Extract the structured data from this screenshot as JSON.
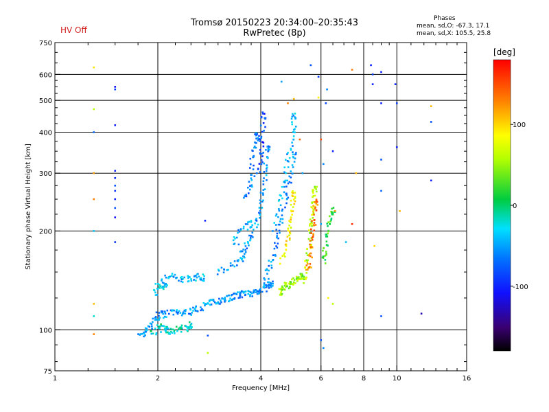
{
  "header": {
    "hv_status": "HV Off",
    "title": "Tromsø 20150223 20:34:00–20:35:43",
    "subtitle": "RwPretec (8p)",
    "stats_title": "Phases",
    "stats_o": "mean, sd,O: -67.3, 17.1",
    "stats_x": "mean, sd,X: 105.5, 25.8"
  },
  "colors": {
    "hv_status": "#d22020",
    "colorbar_top": "#ff0000",
    "colorbar_bottom": "#000000"
  },
  "chart_data": {
    "type": "scatter",
    "xlabel": "Frequency [MHz]",
    "ylabel": "Stationary phase Virtual Height [km]",
    "x_scale": "log",
    "y_scale": "log",
    "xlim": [
      1,
      16
    ],
    "ylim": [
      75,
      750
    ],
    "x_ticks": [
      1,
      2,
      4,
      6,
      8,
      10,
      16
    ],
    "y_ticks": [
      75,
      100,
      200,
      300,
      400,
      500,
      600,
      750
    ],
    "x_grid": [
      2,
      4,
      6,
      8,
      10
    ],
    "y_grid": [
      100,
      200,
      300,
      400,
      500,
      600
    ],
    "colorbar": {
      "label": "[deg]",
      "range": [
        -180,
        180
      ],
      "ticks": [
        100,
        0,
        -100
      ]
    },
    "traces": [
      {
        "phase": -55,
        "points": [
          [
            1.78,
            95
          ],
          [
            1.82,
            98
          ],
          [
            1.88,
            102
          ],
          [
            1.95,
            106
          ],
          [
            2.0,
            110
          ],
          [
            2.05,
            112
          ],
          [
            2.1,
            111
          ],
          [
            2.2,
            113
          ],
          [
            2.3,
            112
          ],
          [
            2.4,
            113
          ],
          [
            2.5,
            114
          ],
          [
            2.6,
            115
          ],
          [
            2.7,
            118
          ],
          [
            2.8,
            120
          ],
          [
            2.9,
            121
          ],
          [
            3.0,
            123
          ],
          [
            3.1,
            124
          ],
          [
            3.2,
            125
          ],
          [
            3.3,
            126
          ],
          [
            3.4,
            127
          ],
          [
            3.5,
            128
          ],
          [
            3.6,
            128
          ],
          [
            3.7,
            129
          ],
          [
            3.8,
            130
          ],
          [
            3.9,
            131
          ],
          [
            4.0,
            132
          ],
          [
            4.1,
            134
          ],
          [
            4.2,
            136
          ],
          [
            4.3,
            138
          ]
        ]
      },
      {
        "phase": -20,
        "points": [
          [
            1.9,
            97
          ],
          [
            2.0,
            100
          ],
          [
            2.05,
            102
          ],
          [
            2.1,
            101
          ],
          [
            2.15,
            100
          ],
          [
            2.2,
            99
          ],
          [
            2.3,
            100
          ],
          [
            2.4,
            101
          ],
          [
            2.5,
            103
          ]
        ]
      },
      {
        "phase": -40,
        "points": [
          [
            2.0,
            140
          ],
          [
            2.1,
            143
          ],
          [
            2.2,
            145
          ],
          [
            2.3,
            144
          ],
          [
            2.4,
            143
          ],
          [
            2.5,
            144
          ],
          [
            2.6,
            145
          ],
          [
            2.7,
            144
          ]
        ]
      },
      {
        "phase": -30,
        "points": [
          [
            1.95,
            130
          ],
          [
            2.0,
            133
          ],
          [
            2.1,
            136
          ]
        ]
      },
      {
        "phase": -55,
        "points": [
          [
            3.5,
            165
          ],
          [
            3.6,
            175
          ],
          [
            3.7,
            185
          ],
          [
            3.8,
            200
          ],
          [
            3.9,
            215
          ],
          [
            4.0,
            235
          ],
          [
            4.05,
            260
          ],
          [
            4.1,
            290
          ],
          [
            4.15,
            320
          ],
          [
            4.2,
            360
          ]
        ]
      },
      {
        "phase": -85,
        "points": [
          [
            3.9,
            300
          ],
          [
            4.0,
            330
          ],
          [
            4.02,
            360
          ],
          [
            4.05,
            400
          ],
          [
            4.08,
            450
          ]
        ]
      },
      {
        "phase": -60,
        "points": [
          [
            4.1,
            140
          ],
          [
            4.2,
            150
          ],
          [
            4.3,
            160
          ],
          [
            4.4,
            175
          ],
          [
            4.5,
            195
          ],
          [
            4.6,
            215
          ],
          [
            4.7,
            240
          ],
          [
            4.8,
            270
          ],
          [
            4.9,
            300
          ],
          [
            5.0,
            340
          ]
        ]
      },
      {
        "phase": -45,
        "points": [
          [
            4.4,
            200
          ],
          [
            4.5,
            230
          ],
          [
            4.6,
            260
          ],
          [
            4.7,
            290
          ],
          [
            4.8,
            330
          ],
          [
            4.9,
            370
          ],
          [
            5.0,
            410
          ],
          [
            5.0,
            450
          ]
        ]
      },
      {
        "phase": 50,
        "points": [
          [
            4.5,
            130
          ],
          [
            4.6,
            132
          ],
          [
            4.7,
            135
          ],
          [
            4.8,
            137
          ],
          [
            4.9,
            138
          ],
          [
            5.0,
            140
          ],
          [
            5.1,
            142
          ],
          [
            5.2,
            144
          ],
          [
            5.3,
            145
          ]
        ]
      },
      {
        "phase": 90,
        "points": [
          [
            4.6,
            160
          ],
          [
            4.7,
            175
          ],
          [
            4.8,
            190
          ],
          [
            4.85,
            205
          ],
          [
            4.9,
            220
          ],
          [
            4.95,
            240
          ],
          [
            5.0,
            260
          ]
        ]
      },
      {
        "phase": 60,
        "points": [
          [
            5.4,
            140
          ],
          [
            5.45,
            155
          ],
          [
            5.5,
            170
          ],
          [
            5.55,
            185
          ],
          [
            5.6,
            200
          ],
          [
            5.65,
            215
          ],
          [
            5.7,
            230
          ],
          [
            5.72,
            250
          ],
          [
            5.75,
            270
          ]
        ]
      },
      {
        "phase": 130,
        "points": [
          [
            5.5,
            150
          ],
          [
            5.55,
            160
          ],
          [
            5.6,
            175
          ],
          [
            5.65,
            190
          ],
          [
            5.7,
            205
          ],
          [
            5.75,
            225
          ],
          [
            5.78,
            245
          ]
        ]
      },
      {
        "phase": 20,
        "points": [
          [
            6.1,
            160
          ],
          [
            6.15,
            170
          ],
          [
            6.2,
            185
          ],
          [
            6.3,
            200
          ],
          [
            6.4,
            215
          ],
          [
            6.5,
            230
          ]
        ]
      },
      {
        "phase": -50,
        "points": [
          [
            3.0,
            150
          ],
          [
            3.2,
            155
          ],
          [
            3.4,
            160
          ],
          [
            3.6,
            165
          ],
          [
            3.3,
            190
          ],
          [
            3.5,
            200
          ],
          [
            3.7,
            210
          ]
        ]
      },
      {
        "phase": -65,
        "points": [
          [
            3.6,
            250
          ],
          [
            3.7,
            270
          ],
          [
            3.8,
            290
          ],
          [
            3.75,
            330
          ],
          [
            3.85,
            360
          ],
          [
            3.9,
            390
          ]
        ]
      }
    ],
    "isolated_points": [
      [
        1.3,
        630,
        95
      ],
      [
        1.3,
        470,
        60
      ],
      [
        1.3,
        400,
        -70
      ],
      [
        1.3,
        300,
        120
      ],
      [
        1.3,
        250,
        130
      ],
      [
        1.3,
        200,
        -40
      ],
      [
        1.3,
        120,
        110
      ],
      [
        1.3,
        110,
        -20
      ],
      [
        1.3,
        97,
        130
      ],
      [
        1.5,
        550,
        -110
      ],
      [
        1.5,
        540,
        -90
      ],
      [
        1.5,
        420,
        -100
      ],
      [
        1.5,
        305,
        -100
      ],
      [
        1.5,
        290,
        -95
      ],
      [
        1.5,
        275,
        -80
      ],
      [
        1.5,
        265,
        -90
      ],
      [
        1.5,
        250,
        -100
      ],
      [
        1.5,
        235,
        -80
      ],
      [
        1.5,
        220,
        -110
      ],
      [
        1.5,
        185,
        -90
      ],
      [
        2.75,
        215,
        -100
      ],
      [
        2.8,
        96,
        -80
      ],
      [
        2.8,
        85,
        60
      ],
      [
        4.6,
        570,
        -50
      ],
      [
        4.8,
        490,
        130
      ],
      [
        5.0,
        505,
        110
      ],
      [
        5.2,
        380,
        140
      ],
      [
        5.3,
        300,
        -50
      ],
      [
        5.6,
        640,
        -80
      ],
      [
        5.9,
        590,
        -90
      ],
      [
        5.9,
        510,
        90
      ],
      [
        6.0,
        380,
        150
      ],
      [
        6.1,
        320,
        -60
      ],
      [
        6.2,
        490,
        -85
      ],
      [
        6.25,
        540,
        -60
      ],
      [
        6.5,
        350,
        -100
      ],
      [
        6.6,
        230,
        120
      ],
      [
        7.4,
        620,
        130
      ],
      [
        7.4,
        210,
        160
      ],
      [
        7.6,
        300,
        110
      ],
      [
        8.4,
        640,
        -100
      ],
      [
        8.5,
        600,
        -90
      ],
      [
        8.5,
        560,
        -100
      ],
      [
        8.6,
        180,
        100
      ],
      [
        9.0,
        610,
        -100
      ],
      [
        9.0,
        490,
        -100
      ],
      [
        9.0,
        330,
        -80
      ],
      [
        9.0,
        265,
        -70
      ],
      [
        9.0,
        110,
        -80
      ],
      [
        9.9,
        560,
        -100
      ],
      [
        10.0,
        490,
        -90
      ],
      [
        10.0,
        360,
        -100
      ],
      [
        10.2,
        230,
        110
      ],
      [
        11.8,
        112,
        -130
      ],
      [
        12.6,
        480,
        110
      ],
      [
        12.6,
        430,
        -80
      ],
      [
        12.6,
        285,
        -100
      ],
      [
        6.0,
        93,
        -80
      ],
      [
        6.1,
        88,
        -60
      ],
      [
        6.3,
        125,
        90
      ],
      [
        6.5,
        120,
        60
      ],
      [
        7.1,
        185,
        -40
      ],
      [
        6.0,
        210,
        -50
      ]
    ]
  }
}
